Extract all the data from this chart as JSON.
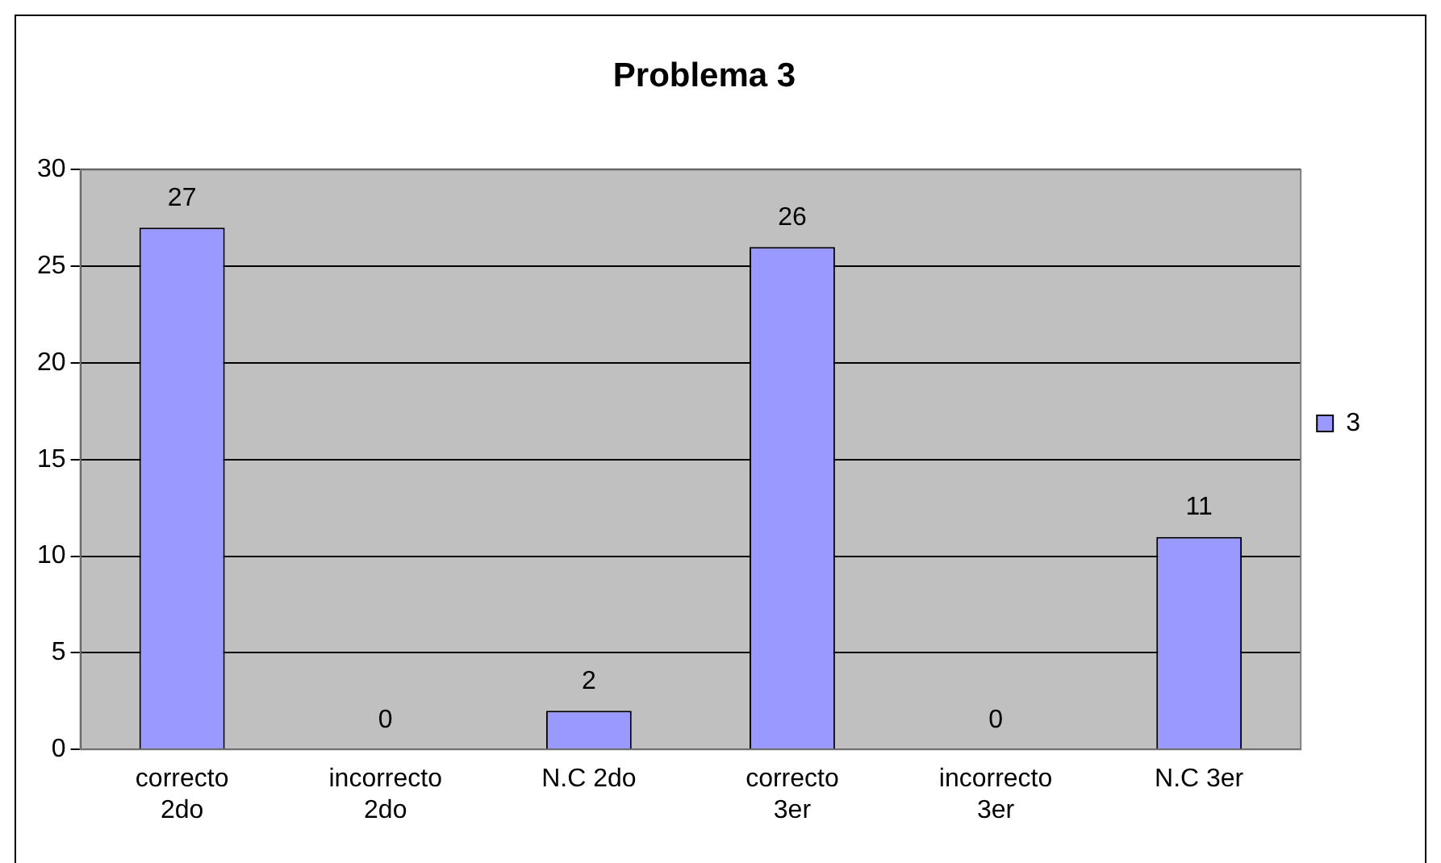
{
  "chart_data": {
    "type": "bar",
    "title": "Problema 3",
    "categories": [
      "correcto 2do",
      "incorrecto 2do",
      "N.C 2do",
      "correcto 3er",
      "incorrecto 3er",
      "N.C 3er"
    ],
    "series": [
      {
        "name": "3",
        "color": "#9999ff",
        "values": [
          27,
          0,
          2,
          26,
          0,
          11
        ]
      }
    ],
    "ylim": [
      0,
      30
    ],
    "yticks": [
      0,
      5,
      10,
      15,
      20,
      25,
      30
    ],
    "grid": "y",
    "legend": "right",
    "data_labels": true
  }
}
